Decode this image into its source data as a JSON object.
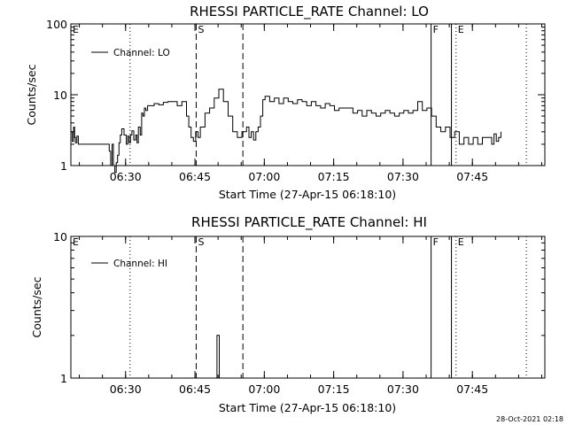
{
  "chart_data": [
    {
      "type": "line",
      "title": "RHESSI PARTICLE_RATE Channel: LO",
      "xlabel": "Start Time (27-Apr-15 06:18:10)",
      "ylabel": "Counts/sec",
      "yscale": "log",
      "ylim": [
        1,
        100
      ],
      "y_tick_labels": [
        "1",
        "10",
        "100"
      ],
      "x_range_minutes": [
        0,
        102.5
      ],
      "x_tick_labels": [
        "06:30",
        "06:45",
        "07:00",
        "07:15",
        "07:30",
        "07:45"
      ],
      "x_tick_minutes": [
        11.83,
        26.83,
        41.83,
        56.83,
        71.83,
        86.83
      ],
      "legend": {
        "position": "top-left",
        "entries": [
          "Channel: LO"
        ]
      },
      "series": [
        {
          "name": "Channel: LO",
          "x": [
            0.0,
            0.3,
            0.6,
            0.8,
            1.0,
            1.3,
            1.6,
            2.0,
            3.0,
            5.0,
            7.0,
            8.0,
            8.3,
            8.6,
            8.9,
            9.2,
            9.5,
            9.8,
            10.1,
            10.4,
            10.7,
            11.0,
            11.5,
            12.0,
            12.3,
            12.6,
            12.9,
            13.2,
            13.6,
            14.0,
            14.3,
            14.6,
            15.0,
            15.3,
            15.6,
            15.9,
            16.2,
            16.6,
            17.0,
            18.0,
            19.0,
            20.0,
            21.0,
            22.0,
            23.0,
            24.0,
            25.0,
            25.5,
            26.0,
            26.5,
            27.0,
            27.5,
            28.0,
            29.0,
            30.0,
            31.0,
            32.0,
            33.0,
            34.0,
            35.0,
            36.0,
            37.0,
            38.0,
            38.5,
            39.0,
            39.5,
            40.0,
            40.5,
            41.0,
            41.5,
            42.0,
            43.0,
            44.0,
            45.0,
            46.0,
            47.0,
            48.0,
            49.0,
            50.0,
            51.0,
            52.0,
            53.0,
            54.0,
            55.0,
            56.0,
            57.0,
            58.0,
            59.0,
            60.0,
            61.0,
            62.0,
            63.0,
            64.0,
            65.0,
            66.0,
            67.0,
            68.0,
            69.0,
            70.0,
            71.0,
            72.0,
            73.0,
            74.0,
            75.0,
            76.0,
            77.0,
            78.0,
            79.0,
            80.0,
            81.0,
            82.0,
            83.0,
            84.0,
            85.0,
            86.0,
            87.0,
            88.0,
            89.0,
            90.0,
            91.0,
            91.5,
            92.0,
            92.5,
            93.0
          ],
          "y": [
            3.0,
            2.2,
            3.5,
            2.5,
            2.1,
            2.6,
            2.0,
            2.0,
            2.0,
            2.0,
            2.0,
            2.0,
            1.6,
            1.0,
            2.0,
            1.0,
            0.8,
            1.1,
            1.4,
            2.1,
            2.7,
            3.3,
            2.7,
            2.0,
            2.6,
            2.1,
            2.7,
            3.1,
            2.3,
            2.7,
            2.1,
            3.5,
            2.7,
            5.5,
            5.0,
            6.5,
            6.0,
            7.0,
            7.0,
            7.5,
            7.2,
            7.8,
            8.0,
            8.0,
            7.0,
            8.0,
            5.0,
            3.5,
            2.5,
            2.2,
            3.0,
            2.5,
            3.5,
            5.5,
            6.5,
            9.0,
            12.0,
            8.0,
            5.0,
            3.0,
            2.5,
            3.0,
            3.5,
            2.5,
            3.0,
            2.3,
            3.0,
            3.5,
            5.0,
            8.5,
            9.5,
            8.0,
            9.0,
            7.5,
            9.0,
            8.0,
            7.5,
            8.5,
            8.0,
            7.0,
            8.0,
            7.0,
            6.5,
            7.5,
            7.0,
            6.0,
            6.5,
            6.5,
            6.5,
            5.5,
            6.0,
            5.0,
            6.0,
            5.5,
            5.0,
            5.5,
            6.0,
            5.5,
            5.0,
            5.5,
            6.0,
            5.5,
            6.0,
            8.0,
            6.0,
            6.5,
            5.0,
            3.5,
            3.0,
            3.5,
            2.5,
            3.0,
            2.0,
            2.5,
            2.0,
            2.5,
            2.0,
            2.5,
            2.5,
            2.0,
            2.8,
            2.2,
            2.5,
            3.0
          ]
        }
      ],
      "vertical_markers": [
        {
          "label": "E",
          "minute": 0.0,
          "style": "dotted"
        },
        {
          "label": "",
          "minute": 12.8,
          "style": "dotted"
        },
        {
          "label": "S",
          "minute": 27.1,
          "style": "dashed"
        },
        {
          "label": "",
          "minute": 37.2,
          "style": "dashed"
        },
        {
          "label": "F",
          "minute": 77.9,
          "style": "solid"
        },
        {
          "label": "",
          "minute": 82.3,
          "style": "solid"
        },
        {
          "label": "E",
          "minute": 83.3,
          "style": "dotted"
        },
        {
          "label": "",
          "minute": 98.5,
          "style": "dotted"
        }
      ]
    },
    {
      "type": "line",
      "title": "RHESSI PARTICLE_RATE Channel: HI",
      "xlabel": "Start Time (27-Apr-15 06:18:10)",
      "ylabel": "Counts/sec",
      "yscale": "log",
      "ylim": [
        1,
        10
      ],
      "y_tick_labels": [
        "1",
        "10"
      ],
      "x_range_minutes": [
        0,
        102.5
      ],
      "x_tick_labels": [
        "06:30",
        "06:45",
        "07:00",
        "07:15",
        "07:30",
        "07:45"
      ],
      "x_tick_minutes": [
        11.83,
        26.83,
        41.83,
        56.83,
        71.83,
        86.83
      ],
      "legend": {
        "position": "top-left",
        "entries": [
          "Channel: HI"
        ]
      },
      "series": [
        {
          "name": "Channel: HI",
          "x": [
            0.0,
            31.5,
            31.6,
            32.0,
            32.1,
            102.5
          ],
          "y": [
            1.0,
            1.0,
            2.0,
            2.0,
            1.0,
            1.0
          ]
        }
      ],
      "vertical_markers": [
        {
          "label": "E",
          "minute": 0.0,
          "style": "dotted"
        },
        {
          "label": "",
          "minute": 12.8,
          "style": "dotted"
        },
        {
          "label": "S",
          "minute": 27.1,
          "style": "dashed"
        },
        {
          "label": "",
          "minute": 37.2,
          "style": "dashed"
        },
        {
          "label": "F",
          "minute": 77.9,
          "style": "solid"
        },
        {
          "label": "",
          "minute": 82.3,
          "style": "solid"
        },
        {
          "label": "E",
          "minute": 83.3,
          "style": "dotted"
        },
        {
          "label": "",
          "minute": 98.5,
          "style": "dotted"
        }
      ]
    }
  ],
  "footer": {
    "timestamp": "28-Oct-2021 02:18"
  }
}
